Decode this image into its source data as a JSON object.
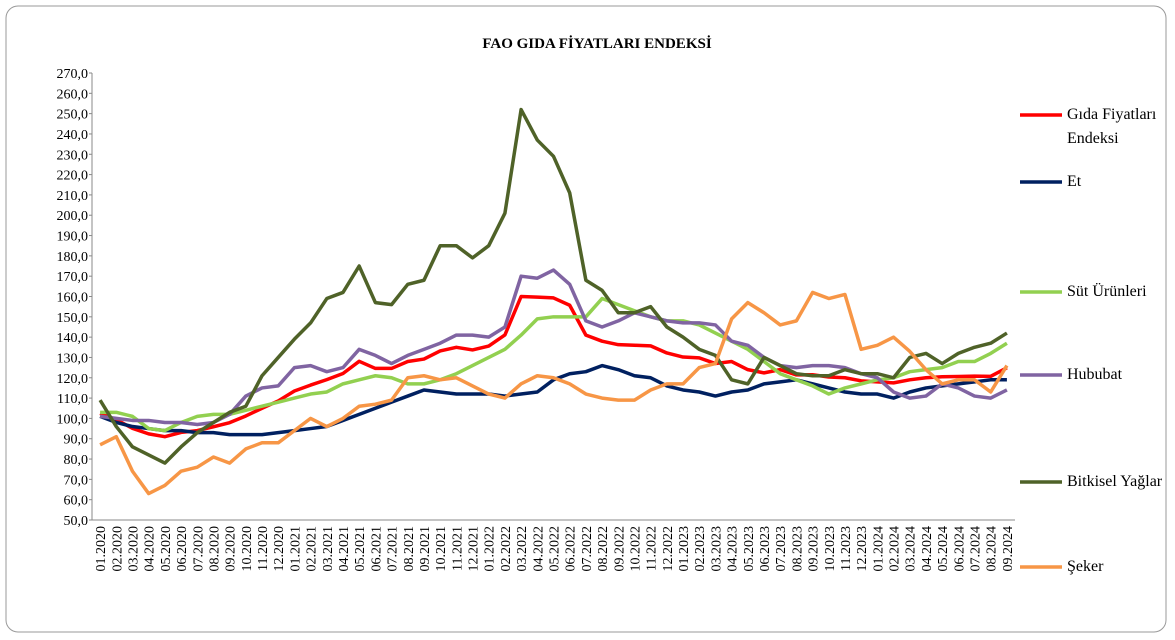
{
  "chart_data": {
    "type": "line",
    "title": "FAO GIDA FİYATLARI ENDEKSİ",
    "categories": [
      "01.2020",
      "02.2020",
      "03.2020",
      "04.2020",
      "05.2020",
      "06.2020",
      "07.2020",
      "08.2020",
      "09.2020",
      "10.2020",
      "11.2020",
      "12.2020",
      "01.2021",
      "02.2021",
      "03.2021",
      "04.2021",
      "05.2021",
      "06.2021",
      "07.2021",
      "08.2021",
      "09.2021",
      "10.2021",
      "11.2021",
      "12.2021",
      "01.2022",
      "02.2022",
      "03.2022",
      "04.2022",
      "05.2022",
      "06.2022",
      "07.2022",
      "08.2022",
      "09.2022",
      "10.2022",
      "11.2022",
      "12.2022",
      "01.2023",
      "02.2023",
      "03.2023",
      "04.2023",
      "05.2023",
      "06.2023",
      "07.2023",
      "08.2023",
      "09.2023",
      "10.2023",
      "11.2023",
      "12.2023",
      "01.2024",
      "02.2024",
      "03.2024",
      "04.2024",
      "05.2024",
      "06.2024",
      "07.2024",
      "08.2024",
      "09.2024"
    ],
    "series": [
      {
        "name": "Gıda Fiyatları Endeksi",
        "color": "#ff0000",
        "values": [
          102.5,
          99.4,
          95.1,
          92.4,
          91.0,
          93.1,
          94.0,
          95.9,
          97.9,
          101.2,
          105.0,
          108.6,
          113.5,
          116.4,
          119.1,
          122.1,
          128.1,
          124.6,
          124.6,
          128.0,
          129.2,
          133.2,
          135.0,
          133.7,
          135.6,
          141.1,
          160.0,
          159.7,
          159.3,
          155.7,
          141.0,
          138.0,
          136.3,
          136.0,
          135.7,
          132.2,
          130.2,
          129.8,
          127.0,
          128.0,
          124.0,
          122.4,
          124.0,
          121.4,
          121.5,
          120.4,
          120.0,
          118.5,
          118.0,
          117.5,
          119.0,
          120.0,
          120.5,
          120.6,
          120.8,
          120.7,
          124.9
        ]
      },
      {
        "name": "Et",
        "color": "#002060",
        "values": [
          101,
          98,
          96,
          95,
          94,
          94,
          93,
          93,
          92,
          92,
          92,
          93,
          94,
          95,
          96,
          99,
          102,
          105,
          108,
          111,
          114,
          113,
          112,
          112,
          112,
          111,
          112,
          113,
          119,
          122,
          123,
          126,
          124,
          121,
          120,
          116,
          114,
          113,
          111,
          113,
          114,
          117,
          118,
          119,
          117,
          115,
          113,
          112,
          112,
          110,
          113,
          115,
          116,
          117,
          118,
          119,
          119
        ]
      },
      {
        "name": "Süt Ürünleri",
        "color": "#92d050",
        "values": [
          103,
          103,
          101,
          95,
          94,
          98,
          101,
          102,
          102,
          104,
          106,
          108,
          110,
          112,
          113,
          117,
          119,
          121,
          120,
          117,
          117,
          119,
          122,
          126,
          130,
          134,
          141,
          149,
          150,
          150,
          150,
          159,
          156,
          153,
          150,
          148,
          148,
          146,
          142,
          138,
          134,
          128,
          122,
          119,
          116,
          112,
          115,
          117,
          119,
          120,
          123,
          124,
          125,
          128,
          128,
          132,
          137
        ]
      },
      {
        "name": "Hububat",
        "color": "#8064a2",
        "values": [
          101,
          100,
          99,
          99,
          98,
          98,
          97,
          98,
          102,
          111,
          115,
          116,
          125,
          126,
          123,
          125,
          134,
          131,
          127,
          131,
          134,
          137,
          141,
          141,
          140,
          145,
          170,
          169,
          173,
          166,
          148,
          145,
          148,
          152,
          150,
          148,
          147,
          147,
          146,
          138,
          136,
          130,
          126,
          125,
          126,
          126,
          125,
          122,
          120,
          113,
          110,
          111,
          117,
          115,
          111,
          110,
          114
        ]
      },
      {
        "name": "Bitkisel Yağlar",
        "color": "#4f6228",
        "values": [
          109,
          96,
          86,
          82,
          78,
          86,
          93,
          98,
          103,
          106,
          121,
          130,
          139,
          147,
          159,
          162,
          175,
          157,
          156,
          166,
          168,
          185,
          185,
          179,
          185,
          201,
          252,
          237,
          229,
          211,
          168,
          163,
          152,
          152,
          155,
          145,
          140,
          134,
          131,
          119,
          117,
          130,
          126,
          122,
          121,
          121,
          124,
          122,
          122,
          120,
          130,
          132,
          127,
          132,
          135,
          137,
          142
        ]
      },
      {
        "name": "Şeker",
        "color": "#f79646",
        "values": [
          87,
          91,
          74,
          63,
          67,
          74,
          76,
          81,
          78,
          85,
          88,
          88,
          94,
          100,
          96,
          100,
          106,
          107,
          109,
          120,
          121,
          119,
          120,
          116,
          112,
          110,
          117,
          121,
          120,
          117,
          112,
          110,
          109,
          109,
          114,
          117,
          117,
          125,
          127,
          149,
          157,
          152,
          146,
          148,
          162,
          159,
          161,
          134,
          136,
          140,
          133,
          124,
          117,
          119,
          119,
          113,
          126
        ]
      }
    ],
    "ylim": [
      50,
      270
    ],
    "yticks": [
      {
        "value": 50,
        "label": "50,0"
      },
      {
        "value": 60,
        "label": "60,0"
      },
      {
        "value": 70,
        "label": "70,0"
      },
      {
        "value": 80,
        "label": "80,0"
      },
      {
        "value": 90,
        "label": "90,0"
      },
      {
        "value": 100,
        "label": "100,0"
      },
      {
        "value": 110,
        "label": "110,0"
      },
      {
        "value": 120,
        "label": "120,0"
      },
      {
        "value": 130,
        "label": "130,0"
      },
      {
        "value": 140,
        "label": "140,0"
      },
      {
        "value": 150,
        "label": "150,0"
      },
      {
        "value": 160,
        "label": "160,0"
      },
      {
        "value": 170,
        "label": "170,0"
      },
      {
        "value": 180,
        "label": "180,0"
      },
      {
        "value": 190,
        "label": "190,0"
      },
      {
        "value": 200,
        "label": "200,0"
      },
      {
        "value": 210,
        "label": "210,0"
      },
      {
        "value": 220,
        "label": "220,0"
      },
      {
        "value": 230,
        "label": "230,0"
      },
      {
        "value": 240,
        "label": "240,0"
      },
      {
        "value": 250,
        "label": "250,0"
      },
      {
        "value": 260,
        "label": "260,0"
      },
      {
        "value": 270,
        "label": "270,0"
      }
    ],
    "legend": "right"
  }
}
